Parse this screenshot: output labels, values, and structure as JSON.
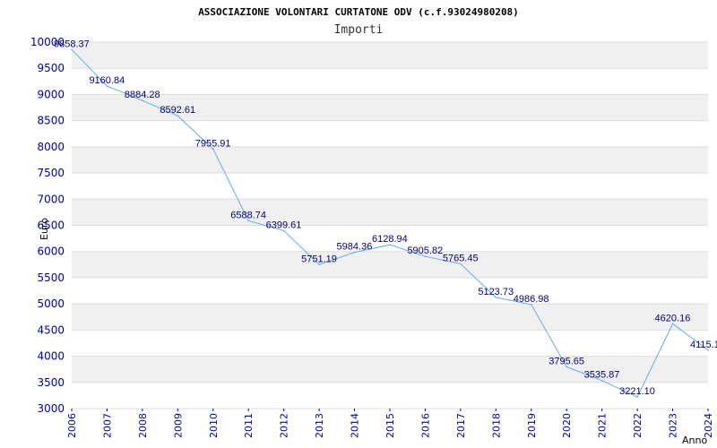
{
  "header": {
    "title": "ASSOCIAZIONE VOLONTARI CURTATONE ODV (c.f.93024980208)",
    "subtitle": "Importi"
  },
  "chart_data": {
    "type": "line",
    "title": "ASSOCIAZIONE VOLONTARI CURTATONE ODV (c.f.93024980208)",
    "subtitle": "Importi",
    "xlabel": "Anno",
    "ylabel": "Euro",
    "ylim": [
      3000,
      10000
    ],
    "yticks": [
      "3000",
      "3500",
      "4000",
      "4500",
      "5000",
      "5500",
      "6000",
      "6500",
      "7000",
      "7500",
      "8000",
      "8500",
      "9000",
      "9500",
      "10000"
    ],
    "categories": [
      "2006",
      "2007",
      "2008",
      "2009",
      "2010",
      "2011",
      "2012",
      "2013",
      "2014",
      "2015",
      "2016",
      "2017",
      "2018",
      "2019",
      "2020",
      "2021",
      "2022",
      "2023",
      "2024"
    ],
    "series": [
      {
        "name": "Importi",
        "values": [
          9858.37,
          9160.84,
          8884.28,
          8592.61,
          7955.91,
          6588.74,
          6399.61,
          5751.19,
          5984.36,
          6128.94,
          5905.82,
          5765.45,
          5123.73,
          4986.98,
          3795.65,
          3535.87,
          3221.1,
          4620.16,
          4115.1
        ],
        "labels": [
          "9858.37",
          "9160.84",
          "8884.28",
          "8592.61",
          "7955.91",
          "6588.74",
          "6399.61",
          "5751.19",
          "5984.36",
          "6128.94",
          "5905.82",
          "5765.45",
          "5123.73",
          "4986.98",
          "3795.65",
          "3535.87",
          "3221.10",
          "4620.16",
          "4115.10"
        ]
      }
    ],
    "grid": true,
    "colors": {
      "line": "#66aaee",
      "band": "#f0f0f0",
      "tick": "#0000aa",
      "label": "#000080"
    }
  }
}
